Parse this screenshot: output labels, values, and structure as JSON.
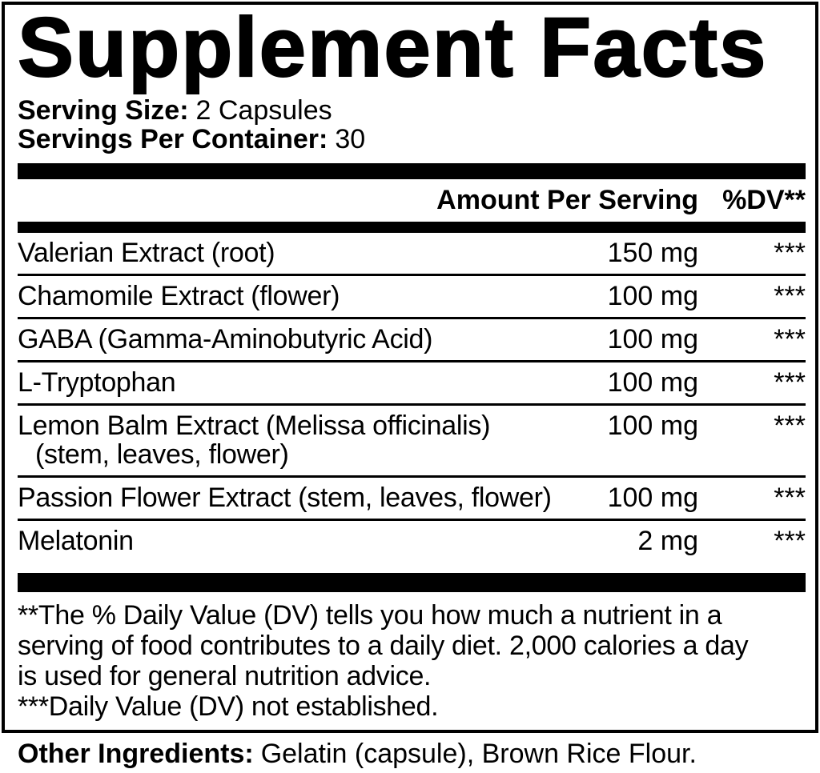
{
  "label": {
    "title": "Supplement Facts",
    "serving_size_label": "Serving Size:",
    "serving_size_value": "2 Capsules",
    "servings_per_container_label": "Servings Per Container:",
    "servings_per_container_value": "30"
  },
  "table": {
    "header": {
      "amount": "Amount Per Serving",
      "dv": "%DV**"
    },
    "rows": [
      {
        "name": "Valerian Extract (root)",
        "amount": "150 mg",
        "dv": "***"
      },
      {
        "name": "Chamomile Extract (flower)",
        "amount": "100 mg",
        "dv": "***"
      },
      {
        "name": "GABA (Gamma-Aminobutyric Acid)",
        "amount": "100 mg",
        "dv": "***"
      },
      {
        "name": "L-Tryptophan",
        "amount": "100 mg",
        "dv": "***"
      },
      {
        "name": "Lemon Balm Extract (Melissa officinalis)",
        "name_line2": "(stem, leaves, flower)",
        "amount": "100 mg",
        "dv": "***"
      },
      {
        "name": "Passion Flower Extract (stem, leaves, flower)",
        "amount": "100 mg",
        "dv": "***"
      },
      {
        "name": "Melatonin",
        "amount": "2 mg",
        "dv": "***"
      }
    ]
  },
  "footnotes": {
    "lines": [
      "**The % Daily Value (DV) tells you how much a nutrient in a",
      "serving of food contributes to a daily diet. 2,000 calories a day",
      "is used for general nutrition advice.",
      "***Daily Value (DV) not established."
    ]
  },
  "other_ingredients": {
    "label": "Other Ingredients:",
    "value": "Gelatin (capsule), Brown Rice Flour."
  },
  "colors": {
    "background": "#ffffff",
    "text": "#000000",
    "bars": "#000000",
    "border": "#000000"
  }
}
